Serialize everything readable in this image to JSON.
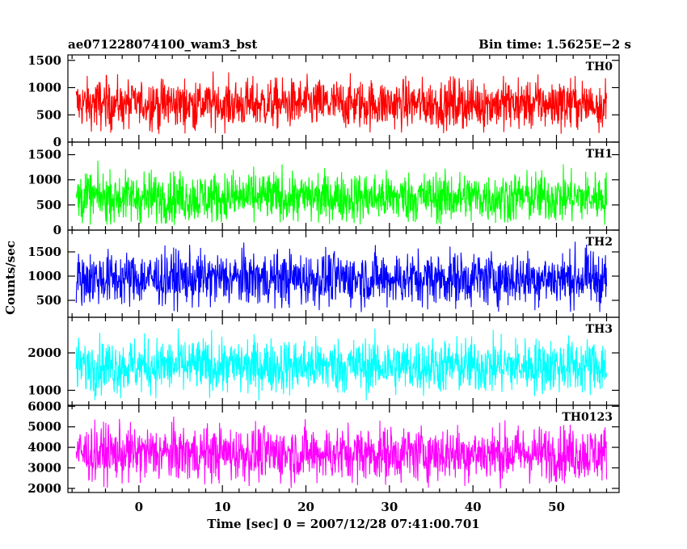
{
  "header": {
    "left_title": "ae071228074100_wam3_bst",
    "right_title": "Bin time: 1.5625E−2 s"
  },
  "chart_data": {
    "type": "line",
    "title": "ae071228074100_wam3_bst",
    "subtitle": "Bin time: 1.5625E−2 s",
    "xlabel": "Time [sec] 0 = 2007/12/28 07:41:00.701",
    "ylabel": "Counts/sec",
    "x_range": [
      -8.5,
      57.5
    ],
    "data_x_range": [
      -7.5,
      56.0
    ],
    "x_ticks": [
      0,
      10,
      20,
      30,
      40,
      50
    ],
    "x_tick_labels": [
      "0",
      "10",
      "20",
      "30",
      "40",
      "50"
    ],
    "grid": false,
    "panels": [
      {
        "name": "TH0",
        "color": "#ff0000",
        "ylim": [
          0,
          1600
        ],
        "y_ticks": [
          0,
          500,
          1000,
          1500
        ],
        "y_tick_labels": [
          "0",
          "500",
          "1000",
          "1500"
        ],
        "approx_level": [
          150,
          1500
        ],
        "approx_mean": 700
      },
      {
        "name": "TH1",
        "color": "#00ff00",
        "ylim": [
          0,
          1750
        ],
        "y_ticks": [
          0,
          500,
          1000,
          1500
        ],
        "y_tick_labels": [
          "0",
          "500",
          "1000",
          "1500"
        ],
        "approx_level": [
          100,
          1600
        ],
        "approx_mean": 650
      },
      {
        "name": "TH2",
        "color": "#0000ff",
        "ylim": [
          150,
          1950
        ],
        "y_ticks": [
          500,
          1000,
          1500
        ],
        "y_tick_labels": [
          "500",
          "1000",
          "1500"
        ],
        "approx_level": [
          250,
          1900
        ],
        "approx_mean": 950
      },
      {
        "name": "TH3",
        "color": "#00ffff",
        "ylim": [
          600,
          2950
        ],
        "y_ticks": [
          1000,
          2000
        ],
        "y_tick_labels": [
          "1000",
          "2000"
        ],
        "approx_level": [
          700,
          2900
        ],
        "approx_mean": 1650
      },
      {
        "name": "TH0123",
        "color": "#ff00ff",
        "ylim": [
          1800,
          6050
        ],
        "y_ticks": [
          2000,
          3000,
          4000,
          5000,
          6000
        ],
        "y_tick_labels": [
          "2000",
          "3000",
          "4000",
          "5000",
          "6000"
        ],
        "approx_level": [
          2000,
          6000
        ],
        "approx_mean": 3700
      }
    ]
  }
}
